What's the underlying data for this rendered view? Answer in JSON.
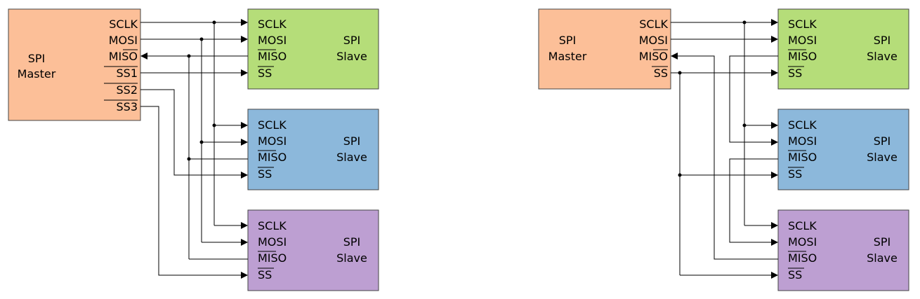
{
  "colors": {
    "master": "#fcbf98",
    "slave_1": "#b5dd79",
    "slave_2": "#8cb8db",
    "slave_3": "#bd9fd2",
    "line": "#000000"
  },
  "diagrams": [
    {
      "master": {
        "title_lines": [
          "SPI",
          "Master"
        ],
        "pins": [
          "SCLK",
          "MOSI",
          "MISO",
          "SS1",
          "SS2",
          "SS3"
        ]
      },
      "slaves": [
        {
          "title_lines": [
            "SPI",
            "Slave"
          ],
          "pins": [
            "SCLK",
            "MOSI",
            "MISO",
            "SS"
          ]
        },
        {
          "title_lines": [
            "SPI",
            "Slave"
          ],
          "pins": [
            "SCLK",
            "MOSI",
            "MISO",
            "SS"
          ]
        },
        {
          "title_lines": [
            "SPI",
            "Slave"
          ],
          "pins": [
            "SCLK",
            "MOSI",
            "MISO",
            "SS"
          ]
        }
      ]
    },
    {
      "master": {
        "title_lines": [
          "SPI",
          "Master"
        ],
        "pins": [
          "SCLK",
          "MOSI",
          "MISO",
          "SS"
        ]
      },
      "slaves": [
        {
          "title_lines": [
            "SPI",
            "Slave"
          ],
          "pins": [
            "SCLK",
            "MOSI",
            "MISO",
            "SS"
          ]
        },
        {
          "title_lines": [
            "SPI",
            "Slave"
          ],
          "pins": [
            "SCLK",
            "MOSI",
            "MISO",
            "SS"
          ]
        },
        {
          "title_lines": [
            "SPI",
            "Slave"
          ],
          "pins": [
            "SCLK",
            "MOSI",
            "MISO",
            "SS"
          ]
        }
      ]
    }
  ]
}
